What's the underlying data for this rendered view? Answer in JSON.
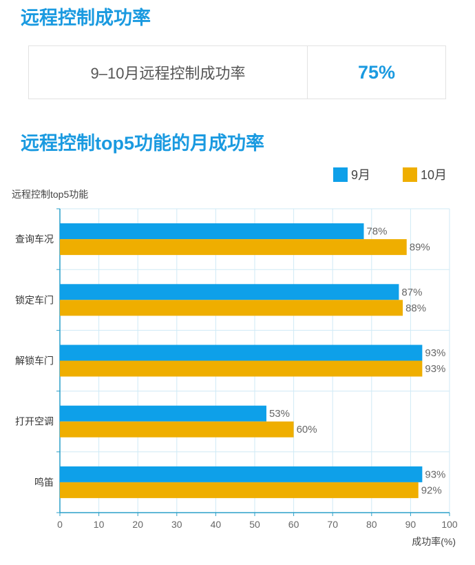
{
  "header": {
    "title": "远程控制成功率"
  },
  "summary": {
    "label": "9–10月远程控制成功率",
    "value": "75%"
  },
  "chart_section": {
    "title": "远程控制top5功能的月成功率"
  },
  "colors": {
    "accent": "#1a9ae0",
    "series_sep": "#0ea0e9",
    "series_oct": "#efae00",
    "grid": "#cfeaf6",
    "axis": "#2a9fc8"
  },
  "chart_data": {
    "type": "bar",
    "orientation": "horizontal",
    "title": "远程控制top5功能的月成功率",
    "ylabel": "远程控制top5功能",
    "xlabel": "成功率(%)",
    "xlim": [
      0,
      100
    ],
    "xticks": [
      "0",
      "10",
      "20",
      "30",
      "40",
      "50",
      "60",
      "70",
      "80",
      "90",
      "100"
    ],
    "legend_position": "top-right",
    "grid": true,
    "categories": [
      "查询车况",
      "锁定车门",
      "解锁车门",
      "打开空调",
      "鸣笛"
    ],
    "series": [
      {
        "name": "9月",
        "color": "#0ea0e9",
        "values": [
          78,
          87,
          93,
          53,
          93
        ],
        "labels": [
          "78%",
          "87%",
          "93%",
          "53%",
          "93%"
        ]
      },
      {
        "name": "10月",
        "color": "#efae00",
        "values": [
          89,
          88,
          93,
          60,
          92
        ],
        "labels": [
          "89%",
          "88%",
          "93%",
          "60%",
          "92%"
        ]
      }
    ]
  }
}
